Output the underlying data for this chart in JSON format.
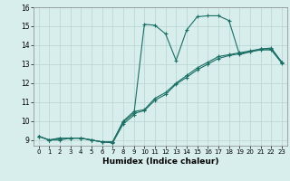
{
  "title": "",
  "xlabel": "Humidex (Indice chaleur)",
  "background_color": "#d8eeed",
  "grid_color": "#b8d4d0",
  "line_color": "#1a6e64",
  "xlim": [
    -0.5,
    23.5
  ],
  "ylim": [
    8.7,
    16.0
  ],
  "xticks": [
    0,
    1,
    2,
    3,
    4,
    5,
    6,
    7,
    8,
    9,
    10,
    11,
    12,
    13,
    14,
    15,
    16,
    17,
    18,
    19,
    20,
    21,
    22,
    23
  ],
  "yticks": [
    9,
    10,
    11,
    12,
    13,
    14,
    15,
    16
  ],
  "series1_x": [
    0,
    1,
    2,
    3,
    4,
    5,
    6,
    7,
    8,
    9,
    10,
    11,
    12,
    13,
    14,
    15,
    16,
    17,
    18,
    19,
    20,
    21,
    22,
    23
  ],
  "series1_y": [
    9.2,
    9.0,
    9.0,
    9.1,
    9.1,
    9.0,
    8.9,
    8.85,
    9.85,
    10.3,
    15.1,
    15.05,
    14.6,
    13.2,
    14.8,
    15.5,
    15.55,
    15.55,
    15.3,
    13.5,
    13.65,
    13.8,
    13.85,
    13.1
  ],
  "series2_x": [
    0,
    1,
    2,
    3,
    4,
    5,
    6,
    7,
    8,
    9,
    10,
    11,
    12,
    13,
    14,
    15,
    16,
    17,
    18,
    19,
    20,
    21,
    22,
    23
  ],
  "series2_y": [
    9.2,
    9.0,
    9.1,
    9.1,
    9.1,
    9.0,
    8.9,
    8.9,
    10.0,
    10.5,
    10.6,
    11.2,
    11.5,
    12.0,
    12.4,
    12.8,
    13.1,
    13.4,
    13.5,
    13.6,
    13.7,
    13.8,
    13.8,
    13.1
  ],
  "series3_x": [
    0,
    1,
    2,
    3,
    4,
    5,
    6,
    7,
    8,
    9,
    10,
    11,
    12,
    13,
    14,
    15,
    16,
    17,
    18,
    19,
    20,
    21,
    22,
    23
  ],
  "series3_y": [
    9.2,
    9.0,
    9.1,
    9.1,
    9.1,
    9.0,
    8.9,
    8.9,
    9.95,
    10.4,
    10.55,
    11.1,
    11.4,
    11.95,
    12.3,
    12.7,
    13.0,
    13.3,
    13.45,
    13.55,
    13.65,
    13.75,
    13.75,
    13.05
  ]
}
